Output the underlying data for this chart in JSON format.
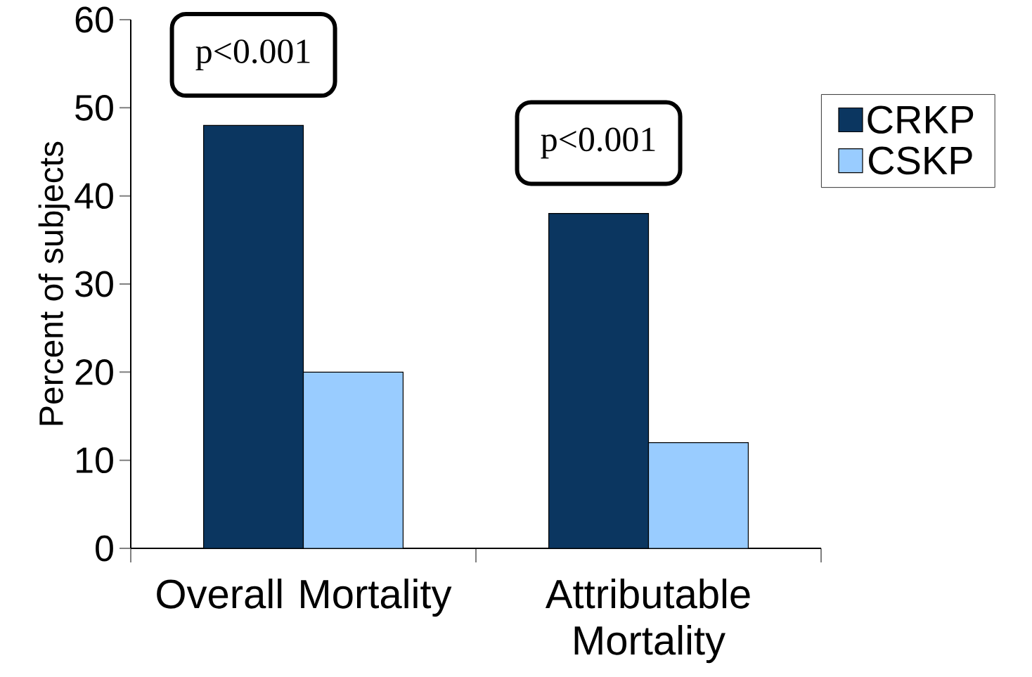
{
  "chart_data": {
    "type": "bar",
    "ylabel": "Percent of subjects",
    "categories": [
      "Overall Mortality",
      "Attributable Mortality"
    ],
    "series": [
      {
        "name": "CRKP",
        "color": "#0b3660",
        "values": [
          48,
          38
        ]
      },
      {
        "name": "CSKP",
        "color": "#99ccff",
        "values": [
          20,
          12
        ]
      }
    ],
    "ylim": [
      0,
      60
    ],
    "yticks": [
      0,
      10,
      20,
      30,
      40,
      50,
      60
    ],
    "legend": "right",
    "annotations": [
      "p<0.001",
      "p<0.001"
    ]
  }
}
